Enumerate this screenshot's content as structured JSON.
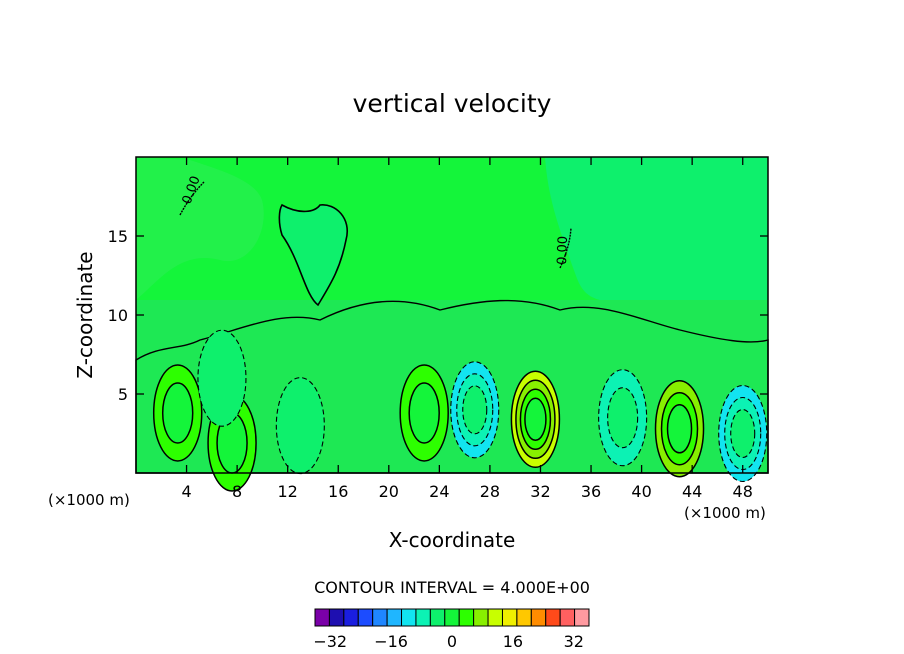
{
  "chart_data": {
    "type": "heatmap",
    "title": "vertical velocity",
    "xlabel": "X-coordinate",
    "ylabel": "Z-coordinate",
    "x_unit": "(×1000 m)",
    "y_unit": "(×1000 m)",
    "xlim": [
      0,
      50
    ],
    "ylim": [
      0,
      20
    ],
    "x_ticks": [
      4,
      8,
      12,
      16,
      20,
      24,
      28,
      32,
      36,
      40,
      44,
      48
    ],
    "y_ticks": [
      5,
      10,
      15
    ],
    "contour_label": "0.00",
    "contour_interval_text": "CONTOUR INTERVAL = 4.000E+00",
    "colorbar": {
      "levels": [
        -36,
        -32,
        -28,
        -24,
        -20,
        -16,
        -12,
        -8,
        -4,
        0,
        4,
        8,
        12,
        16,
        20,
        24,
        28,
        32,
        36
      ],
      "tick_labels": [
        "-32",
        "-16",
        "0",
        "16",
        "32"
      ],
      "tick_values": [
        -32,
        -16,
        0,
        16,
        32
      ],
      "colors": [
        "#7a00a8",
        "#1e0fb0",
        "#1a1ee0",
        "#1c4cff",
        "#1f86ff",
        "#1fb6ff",
        "#12e4f0",
        "#0cf2b4",
        "#0ef06c",
        "#14f53a",
        "#2dff00",
        "#88ef00",
        "#c8ff00",
        "#f0f000",
        "#ffc800",
        "#ff8c00",
        "#ff4a1a",
        "#ff6060",
        "#ff9aa0"
      ]
    },
    "cells": [
      {
        "x": 3.3,
        "z": 3.8,
        "w": 9,
        "level": "updraft"
      },
      {
        "x": 7.6,
        "z": 1.9,
        "w": 9,
        "level": "updraft"
      },
      {
        "x": 22.8,
        "z": 3.8,
        "w": 7,
        "level": "updraft"
      },
      {
        "x": 31.6,
        "z": 3.4,
        "w": 16,
        "level": "updraft"
      },
      {
        "x": 43.0,
        "z": 2.8,
        "w": 13,
        "level": "updraft"
      },
      {
        "x": 6.8,
        "z": 6.0,
        "w": -4,
        "level": "downdraft"
      },
      {
        "x": 13.0,
        "z": 3.0,
        "w": -4,
        "level": "downdraft"
      },
      {
        "x": 26.8,
        "z": 4.0,
        "w": -10,
        "level": "downdraft"
      },
      {
        "x": 38.5,
        "z": 3.5,
        "w": -6,
        "level": "downdraft"
      },
      {
        "x": 48.0,
        "z": 2.5,
        "w": -10,
        "level": "downdraft"
      }
    ]
  }
}
